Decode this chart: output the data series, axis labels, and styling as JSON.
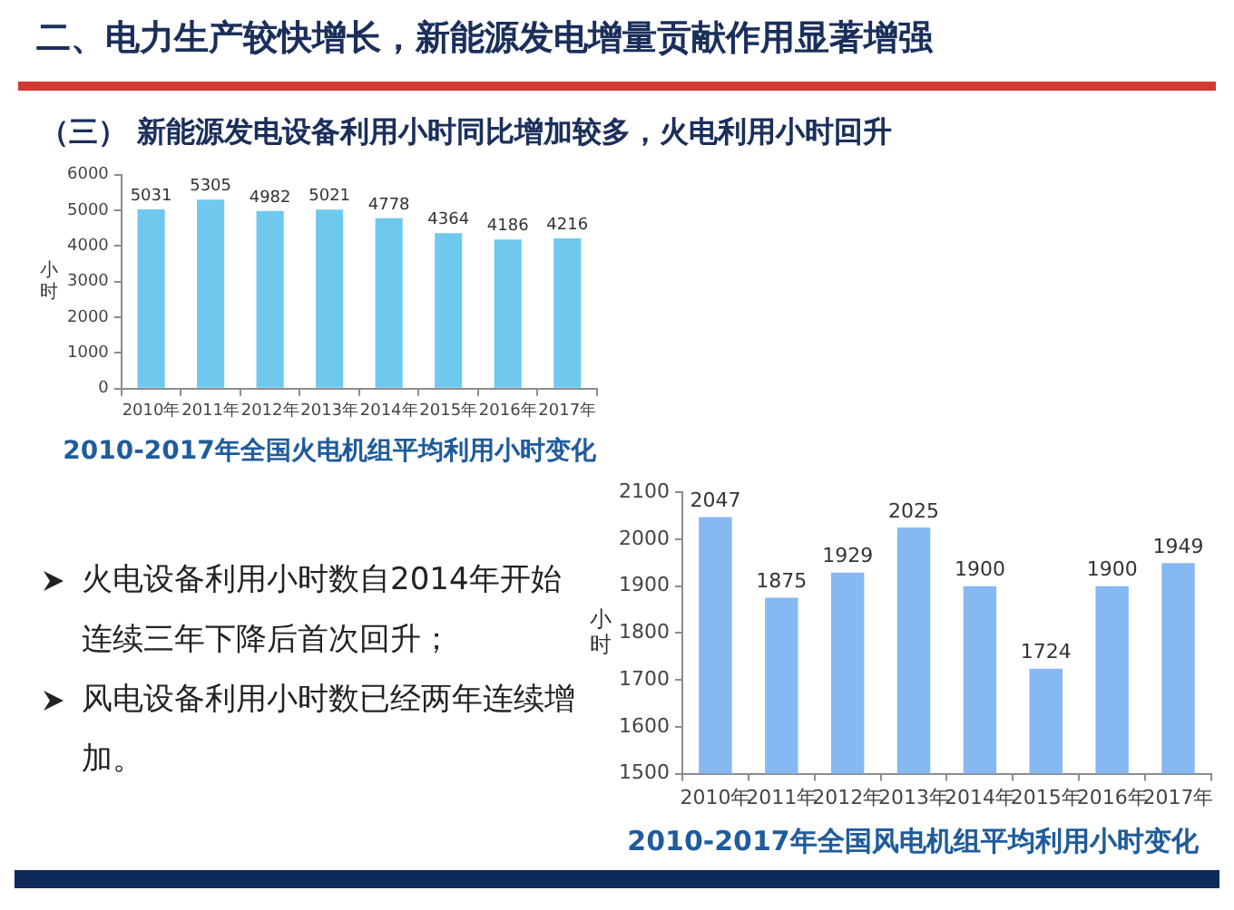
{
  "chart_data": [
    {
      "type": "other",
      "title": "二、电力生产较快增长，新能源发电增量贡献作用显著增强",
      "subtitle": "（三） 新能源发电设备利用小时同比增加较多，火电利用小时回升"
    },
    {
      "type": "bar",
      "title": "2010-2017年全国火电机组平均利用小时变化",
      "ylabel": "小时",
      "categories": [
        "2010年",
        "2011年",
        "2012年",
        "2013年",
        "2014年",
        "2015年",
        "2016年",
        "2017年"
      ],
      "values": [
        5031,
        5305,
        4982,
        5021,
        4778,
        4364,
        4186,
        4216
      ],
      "color": "#6fc9ef",
      "ylim": [
        0,
        6000
      ],
      "yticks": [
        0,
        1000,
        2000,
        3000,
        4000,
        5000,
        6000
      ],
      "data_labels": true
    },
    {
      "type": "other",
      "annotations": [
        "火电设备利用小时数自2014年开始连续三年下降后首次回升；",
        "风电设备利用小时数已经两年连续增加。"
      ]
    },
    {
      "type": "bar",
      "title": "2010-2017年全国风电机组平均利用小时变化",
      "ylabel": "小时",
      "categories": [
        "2010年",
        "2011年",
        "2012年",
        "2013年",
        "2014年",
        "2015年",
        "2016年",
        "2017年"
      ],
      "values": [
        2047,
        1875,
        1929,
        2025,
        1900,
        1724,
        1900,
        1949
      ],
      "color": "#86b8f2",
      "ylim": [
        1500,
        2100
      ],
      "yticks": [
        1500,
        1600,
        1700,
        1800,
        1900,
        2000,
        2100
      ],
      "data_labels": true
    }
  ]
}
